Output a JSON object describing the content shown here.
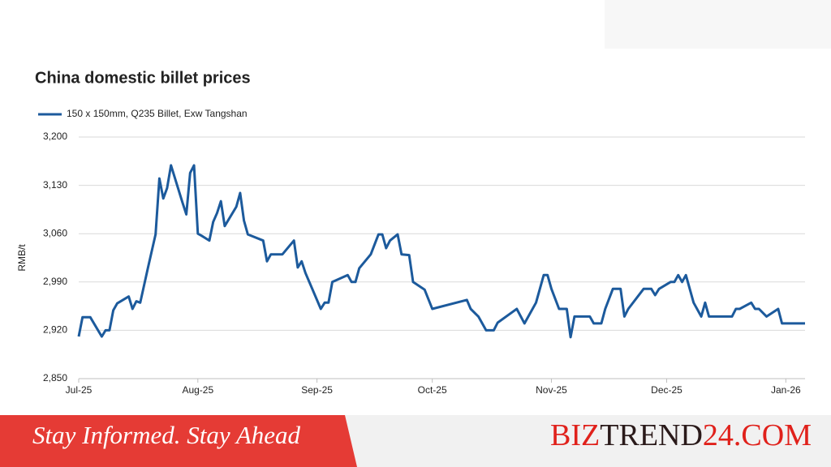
{
  "chart_data": {
    "type": "line",
    "title": "China domestic billet prices",
    "y_label": "RMB/t",
    "x": [
      0,
      1,
      3,
      6,
      7,
      8,
      9,
      10,
      13,
      14,
      15,
      16,
      18,
      20,
      21,
      22,
      23,
      24,
      27,
      28,
      29,
      30,
      31,
      32,
      34,
      35,
      36,
      37,
      38,
      41,
      42,
      43,
      44,
      48,
      49,
      50,
      53,
      56,
      57,
      58,
      59,
      63,
      64,
      65,
      66,
      70,
      71,
      72,
      73,
      76,
      78,
      79,
      80,
      81,
      83,
      84,
      86,
      87,
      90,
      92,
      101,
      102,
      104,
      106,
      108,
      109,
      114,
      116,
      119,
      121,
      122,
      123,
      125,
      127,
      128,
      129,
      133,
      134,
      136,
      137,
      139,
      141,
      142,
      143,
      147,
      149,
      150,
      151,
      154,
      155,
      156,
      157,
      158,
      160,
      162,
      163,
      164,
      170,
      171,
      172,
      175,
      176,
      177,
      179,
      182,
      183,
      185,
      189
    ],
    "series": [
      {
        "name": "150 x 150mm, Q235 Billet, Exw Tangshan",
        "color": "#1c5a9c",
        "values": [
          2911,
          2939,
          2939,
          2911,
          2920,
          2920,
          2949,
          2959,
          2969,
          2951,
          2962,
          2960,
          3010,
          3059,
          3140,
          3111,
          3126,
          3159,
          3105,
          3088,
          3148,
          3159,
          3060,
          3057,
          3050,
          3077,
          3090,
          3107,
          3071,
          3099,
          3119,
          3079,
          3059,
          3050,
          3020,
          3030,
          3030,
          3050,
          3011,
          3020,
          3003,
          2951,
          2960,
          2960,
          2990,
          3000,
          2990,
          2990,
          3010,
          3030,
          3059,
          3059,
          3039,
          3050,
          3059,
          3030,
          3029,
          2990,
          2979,
          2951,
          2964,
          2951,
          2940,
          2920,
          2920,
          2931,
          2951,
          2930,
          2960,
          3000,
          3000,
          2980,
          2951,
          2951,
          2910,
          2940,
          2940,
          2930,
          2930,
          2951,
          2980,
          2980,
          2940,
          2951,
          2980,
          2980,
          2971,
          2980,
          2990,
          2990,
          3000,
          2990,
          3000,
          2960,
          2940,
          2960,
          2940,
          2940,
          2951,
          2951,
          2960,
          2951,
          2951,
          2940,
          2951,
          2930,
          2930,
          2930
        ]
      }
    ],
    "xlim": [
      0,
      189
    ],
    "xticks": [
      {
        "value": 0,
        "label": "Jul-25"
      },
      {
        "value": 31,
        "label": "Aug-25"
      },
      {
        "value": 62,
        "label": "Sep-25"
      },
      {
        "value": 92,
        "label": "Oct-25"
      },
      {
        "value": 123,
        "label": "Nov-25"
      },
      {
        "value": 153,
        "label": "Dec-25"
      },
      {
        "value": 184,
        "label": "Jan-26"
      }
    ],
    "ylim": [
      2850,
      3200
    ],
    "yticks": [
      {
        "value": 2850,
        "label": "2,850"
      },
      {
        "value": 2920,
        "label": "2,920"
      },
      {
        "value": 2990,
        "label": "2,990"
      },
      {
        "value": 3060,
        "label": "3,060"
      },
      {
        "value": 3130,
        "label": "3,130"
      },
      {
        "value": 3200,
        "label": "3,200"
      }
    ],
    "grid": true,
    "legend": "top-left"
  },
  "banner": {
    "tagline": "Stay Informed. Stay Ahead",
    "brand": [
      "BIZ",
      "TREND",
      "24.COM"
    ]
  }
}
